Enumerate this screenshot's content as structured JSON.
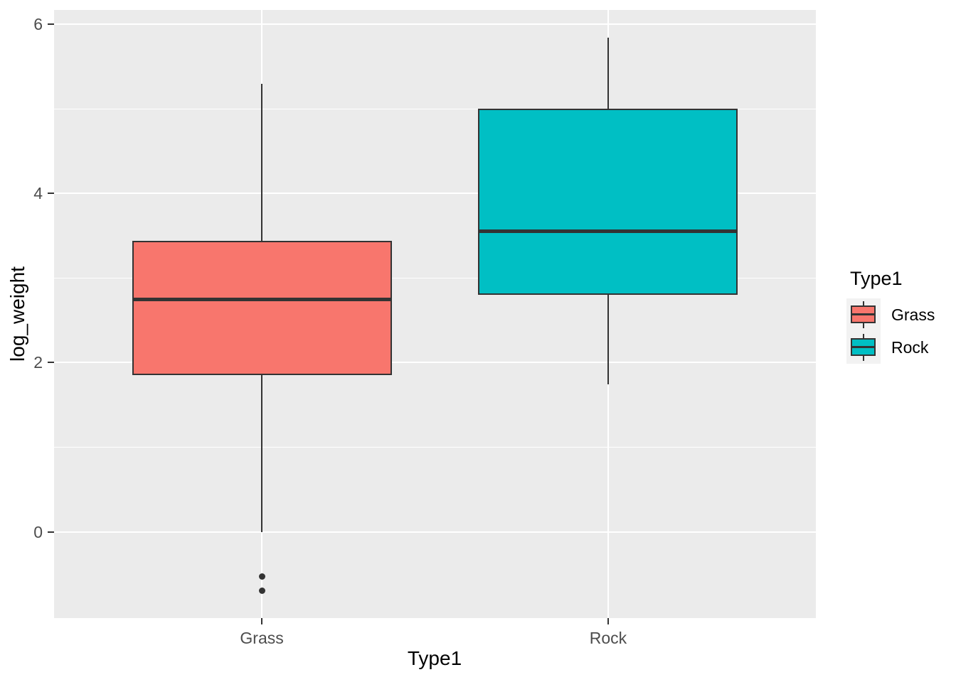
{
  "chart_data": {
    "type": "boxplot",
    "title": "",
    "xlabel": "Type1",
    "ylabel": "log_weight",
    "x_categories": [
      "Grass",
      "Rock"
    ],
    "y_ticks": [
      0,
      2,
      4,
      6
    ],
    "y_tick_labels": [
      "0",
      "2",
      "4",
      "6"
    ],
    "y_minor_ticks": [
      1,
      3,
      5
    ],
    "ylim": [
      -1.02,
      6.17
    ],
    "grid": "white major and minor horizontal lines, white vertical line at each category, on grey panel",
    "legend_position": "right",
    "legend": {
      "title": "Type1",
      "entries": [
        {
          "label": "Grass",
          "color": "#F8766D"
        },
        {
          "label": "Rock",
          "color": "#00BFC4"
        }
      ]
    },
    "series": [
      {
        "name": "Grass",
        "fill": "#F8766D",
        "lower_whisker": 0.0,
        "q1": 1.85,
        "median": 2.75,
        "q3": 3.44,
        "upper_whisker": 5.3,
        "outliers": [
          -0.53,
          -0.7
        ]
      },
      {
        "name": "Rock",
        "fill": "#00BFC4",
        "lower_whisker": 1.74,
        "q1": 2.8,
        "median": 3.55,
        "q3": 5.0,
        "upper_whisker": 5.84,
        "outliers": []
      }
    ]
  },
  "colors": {
    "figure_background": "#FFFFFF",
    "panel_background": "#EBEBEB",
    "grid_line": "#FFFFFF",
    "box_outline": "#333333",
    "outlier_point": "#333333",
    "axis_tick_text": "#4D4D4D",
    "axis_title_text": "#000000",
    "legend_key_background": "#F2F2F2"
  }
}
